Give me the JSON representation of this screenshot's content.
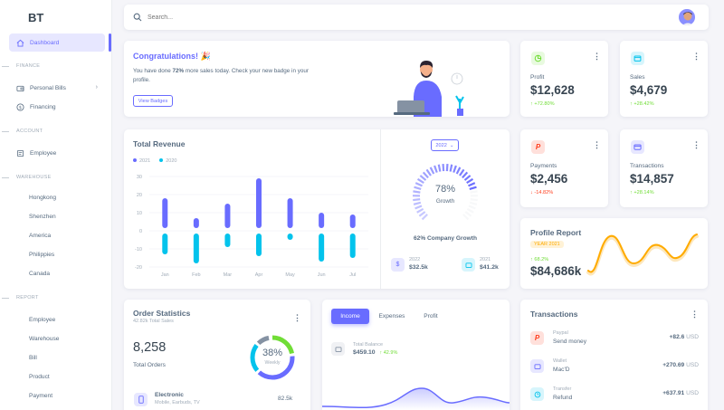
{
  "brand": "BT",
  "sidebar": {
    "dashboard": "Dashboard",
    "section_finance": "FINANCE",
    "personal_bills": "Personal Bills",
    "financing": "Financing",
    "section_account": "ACCOUNT",
    "employee": "Employee",
    "section_warehouse": "WAREHOUSE",
    "warehouse_items": [
      "Hongkong",
      "Shenzhen",
      "America",
      "Philippies",
      "Canada"
    ],
    "section_report": "REPORT",
    "report_items": [
      "Employee",
      "Warehouse",
      "Bill",
      "Product",
      "Payment"
    ]
  },
  "search": {
    "placeholder": "Search..."
  },
  "welcome": {
    "title": "Congratulations! 🎉",
    "line1_pre": "You have done ",
    "line1_bold": "72%",
    "line1_post": " more sales today. Check your new badge in your",
    "line2": "profile.",
    "button": "View Badges"
  },
  "stats": {
    "profit": {
      "label": "Profit",
      "value": "$12,628",
      "delta": "+72.80%"
    },
    "sales": {
      "label": "Sales",
      "value": "$4,679",
      "delta": "+28.42%"
    },
    "payments": {
      "label": "Payments",
      "value": "$2,456",
      "delta": "-14.82%"
    },
    "transactions": {
      "label": "Transactions",
      "value": "$14,857",
      "delta": "+28.14%"
    }
  },
  "revenue": {
    "title": "Total Revenue",
    "legend": [
      "2021",
      "2020"
    ],
    "year_select": "2022",
    "growth_pct": "78%",
    "growth_label": "Growth",
    "company_growth": "62% Company Growth",
    "y2022_label": "2022",
    "y2022_value": "$32.5k",
    "y2021_label": "2021",
    "y2021_value": "$41.2k"
  },
  "chart_data": {
    "type": "bar",
    "categories": [
      "Jan",
      "Feb",
      "Mar",
      "Apr",
      "May",
      "Jun",
      "Jul"
    ],
    "series": [
      {
        "name": "2021",
        "values": [
          18,
          7,
          15,
          29,
          18,
          10,
          9
        ]
      },
      {
        "name": "2020",
        "values": [
          -13,
          -18,
          -9,
          -14,
          -5,
          -17,
          -15
        ]
      }
    ],
    "ylim": [
      -20,
      30
    ],
    "yticks": [
      30,
      20,
      10,
      0,
      -10,
      -20
    ],
    "colors": {
      "2021": "#696cff",
      "2020": "#03c3ec"
    }
  },
  "profile_report": {
    "title": "Profile Report",
    "badge": "YEAR 2021",
    "delta": "68.2%",
    "value": "$84,686k"
  },
  "order_stats": {
    "title": "Order Statistics",
    "subtitle": "42.82k Total Sales",
    "total": "8,258",
    "total_label": "Total Orders",
    "donut_pct": "38%",
    "donut_label": "Weekly",
    "item_name": "Electronic",
    "item_desc": "Mobile, Earbuds, TV",
    "item_value": "82.5k"
  },
  "income": {
    "tabs": [
      "Income",
      "Expenses",
      "Profit"
    ],
    "balance_label": "Total Balance",
    "balance_value": "$459.10",
    "balance_delta": "42.9%"
  },
  "transactions": {
    "title": "Transactions",
    "rows": [
      {
        "source": "Paypal",
        "name": "Send money",
        "amount": "+82.6",
        "currency": "USD"
      },
      {
        "source": "Wallet",
        "name": "Mac'D",
        "amount": "+270.69",
        "currency": "USD"
      },
      {
        "source": "Transfer",
        "name": "Refund",
        "amount": "+637.91",
        "currency": "USD"
      }
    ]
  }
}
